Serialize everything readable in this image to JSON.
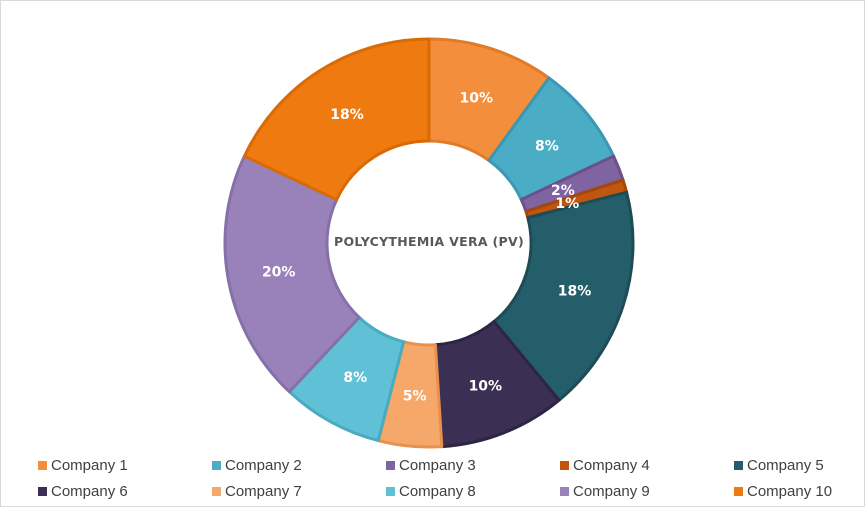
{
  "chart_data": {
    "type": "donut",
    "title": "POLYCYTHEMIA VERA (PV)",
    "legend_position": "bottom",
    "slices": [
      {
        "name": "Company 1",
        "value": 10,
        "label": "10%",
        "color": "#F28E3C",
        "border": "#E07B28"
      },
      {
        "name": "Company 2",
        "value": 8,
        "label": "8%",
        "color": "#4BACC6",
        "border": "#3A98B2"
      },
      {
        "name": "Company 3",
        "value": 2,
        "label": "2%",
        "color": "#8064A2",
        "border": "#6B5089"
      },
      {
        "name": "Company 4",
        "value": 1,
        "label": "1%",
        "color": "#C0560F",
        "border": "#A5470A"
      },
      {
        "name": "Company 5",
        "value": 18,
        "label": "18%",
        "color": "#255E6B",
        "border": "#1D4C57"
      },
      {
        "name": "Company 6",
        "value": 10,
        "label": "10%",
        "color": "#3B2F54",
        "border": "#2E2443"
      },
      {
        "name": "Company 7",
        "value": 5,
        "label": "5%",
        "color": "#F5A86A",
        "border": "#E8914C"
      },
      {
        "name": "Company 8",
        "value": 8,
        "label": "8%",
        "color": "#5FC0D6",
        "border": "#4AAAC0"
      },
      {
        "name": "Company 9",
        "value": 20,
        "label": "20%",
        "color": "#9882B9",
        "border": "#8670A8"
      },
      {
        "name": "Company 10",
        "value": 18,
        "label": "18%",
        "color": "#EE7A10",
        "border": "#D96A05"
      }
    ]
  }
}
